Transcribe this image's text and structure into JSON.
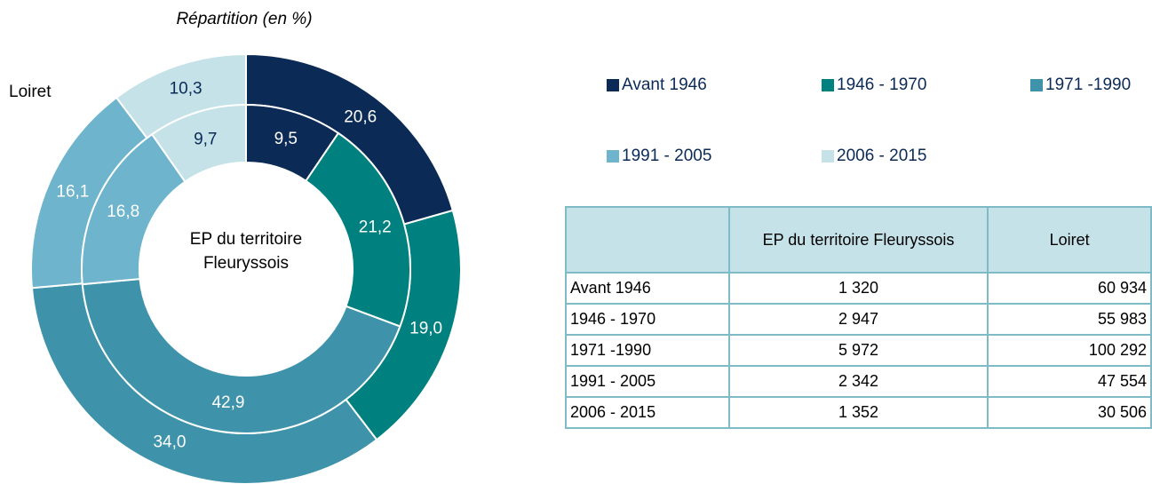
{
  "chart_data": {
    "type": "donut",
    "title": "Répartition (en %)",
    "categories": [
      "Avant 1946",
      "1946 - 1970",
      "1971 -1990",
      "1991 - 2005",
      "2006 - 2015"
    ],
    "colors": [
      "#0b2a55",
      "#00807e",
      "#3e93ab",
      "#6db4cc",
      "#c4e2e8"
    ],
    "series": [
      {
        "name": "Loiret",
        "values": [
          20.6,
          19.0,
          34.0,
          16.1,
          10.3
        ],
        "value_labels": [
          "20,6",
          "19,0",
          "34,0",
          "16,1",
          "10,3"
        ]
      },
      {
        "name": "EP du territoire Fleuryssois",
        "values": [
          9.5,
          21.2,
          42.9,
          16.8,
          9.7
        ],
        "value_labels": [
          "9,5",
          "21,2",
          "42,9",
          "16,8",
          "9,7"
        ]
      }
    ]
  },
  "table": {
    "rows": [
      [
        "1 320",
        "60 934"
      ],
      [
        "2 947",
        "55 983"
      ],
      [
        "5 972",
        "100 292"
      ],
      [
        "2 342",
        "47 554"
      ],
      [
        "1 352",
        "30 506"
      ]
    ]
  }
}
